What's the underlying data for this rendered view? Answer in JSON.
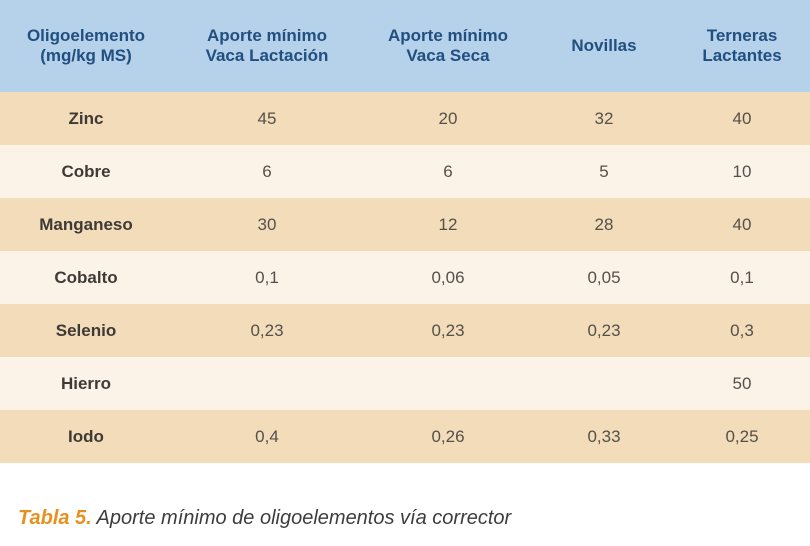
{
  "table": {
    "headers": [
      [
        "Oligoelemento",
        "(mg/kg MS)"
      ],
      [
        "Aporte mínimo",
        "Vaca Lactación"
      ],
      [
        "Aporte mínimo",
        "Vaca Seca"
      ],
      [
        "Novillas"
      ],
      [
        "Terneras",
        "Lactantes"
      ]
    ],
    "rows": [
      [
        "Zinc",
        "45",
        "20",
        "32",
        "40"
      ],
      [
        "Cobre",
        "6",
        "6",
        "5",
        "10"
      ],
      [
        "Manganeso",
        "30",
        "12",
        "28",
        "40"
      ],
      [
        "Cobalto",
        "0,1",
        "0,06",
        "0,05",
        "0,1"
      ],
      [
        "Selenio",
        "0,23",
        "0,23",
        "0,23",
        "0,3"
      ],
      [
        "Hierro",
        "",
        "",
        "",
        "50"
      ],
      [
        "Iodo",
        "0,4",
        "0,26",
        "0,33",
        "0,25"
      ]
    ]
  },
  "caption": {
    "label": "Tabla 5.",
    "text": " Aporte mínimo de oligoelementos vía corrector"
  },
  "colors": {
    "header_bg": "#b6d1ea",
    "header_text": "#214f7f",
    "row_odd_bg": "#f2dcb9",
    "row_even_bg": "#fcf3e8",
    "caption_label": "#e8901f"
  }
}
